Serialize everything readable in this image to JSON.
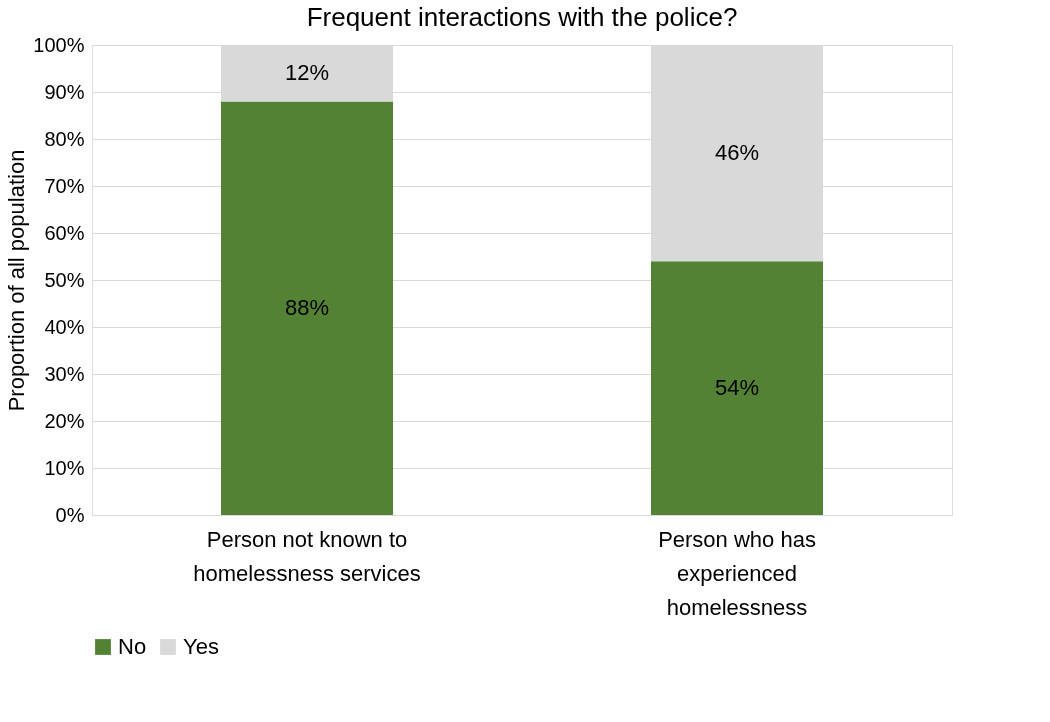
{
  "chart_data": {
    "type": "bar",
    "stacked": true,
    "title": "Frequent interactions with the police?",
    "ylabel": "Proportion of all population",
    "categories": [
      "Person not known to homelessness services",
      "Person who has experienced homelessness"
    ],
    "series": [
      {
        "name": "No",
        "color": "#548235",
        "values": [
          88,
          54
        ],
        "value_labels": [
          "88%",
          "54%"
        ]
      },
      {
        "name": "Yes",
        "color": "#d9d9d9",
        "values": [
          12,
          46
        ],
        "value_labels": [
          "12%",
          "46%"
        ]
      }
    ],
    "ylim": [
      0,
      100
    ],
    "yticks": [
      {
        "value": 0,
        "label": "0%"
      },
      {
        "value": 10,
        "label": "10%"
      },
      {
        "value": 20,
        "label": "20%"
      },
      {
        "value": 30,
        "label": "30%"
      },
      {
        "value": 40,
        "label": "40%"
      },
      {
        "value": 50,
        "label": "50%"
      },
      {
        "value": 60,
        "label": "60%"
      },
      {
        "value": 70,
        "label": "70%"
      },
      {
        "value": 80,
        "label": "80%"
      },
      {
        "value": 90,
        "label": "90%"
      },
      {
        "value": 100,
        "label": "100%"
      }
    ],
    "grid": "y",
    "legend": "bottom"
  }
}
